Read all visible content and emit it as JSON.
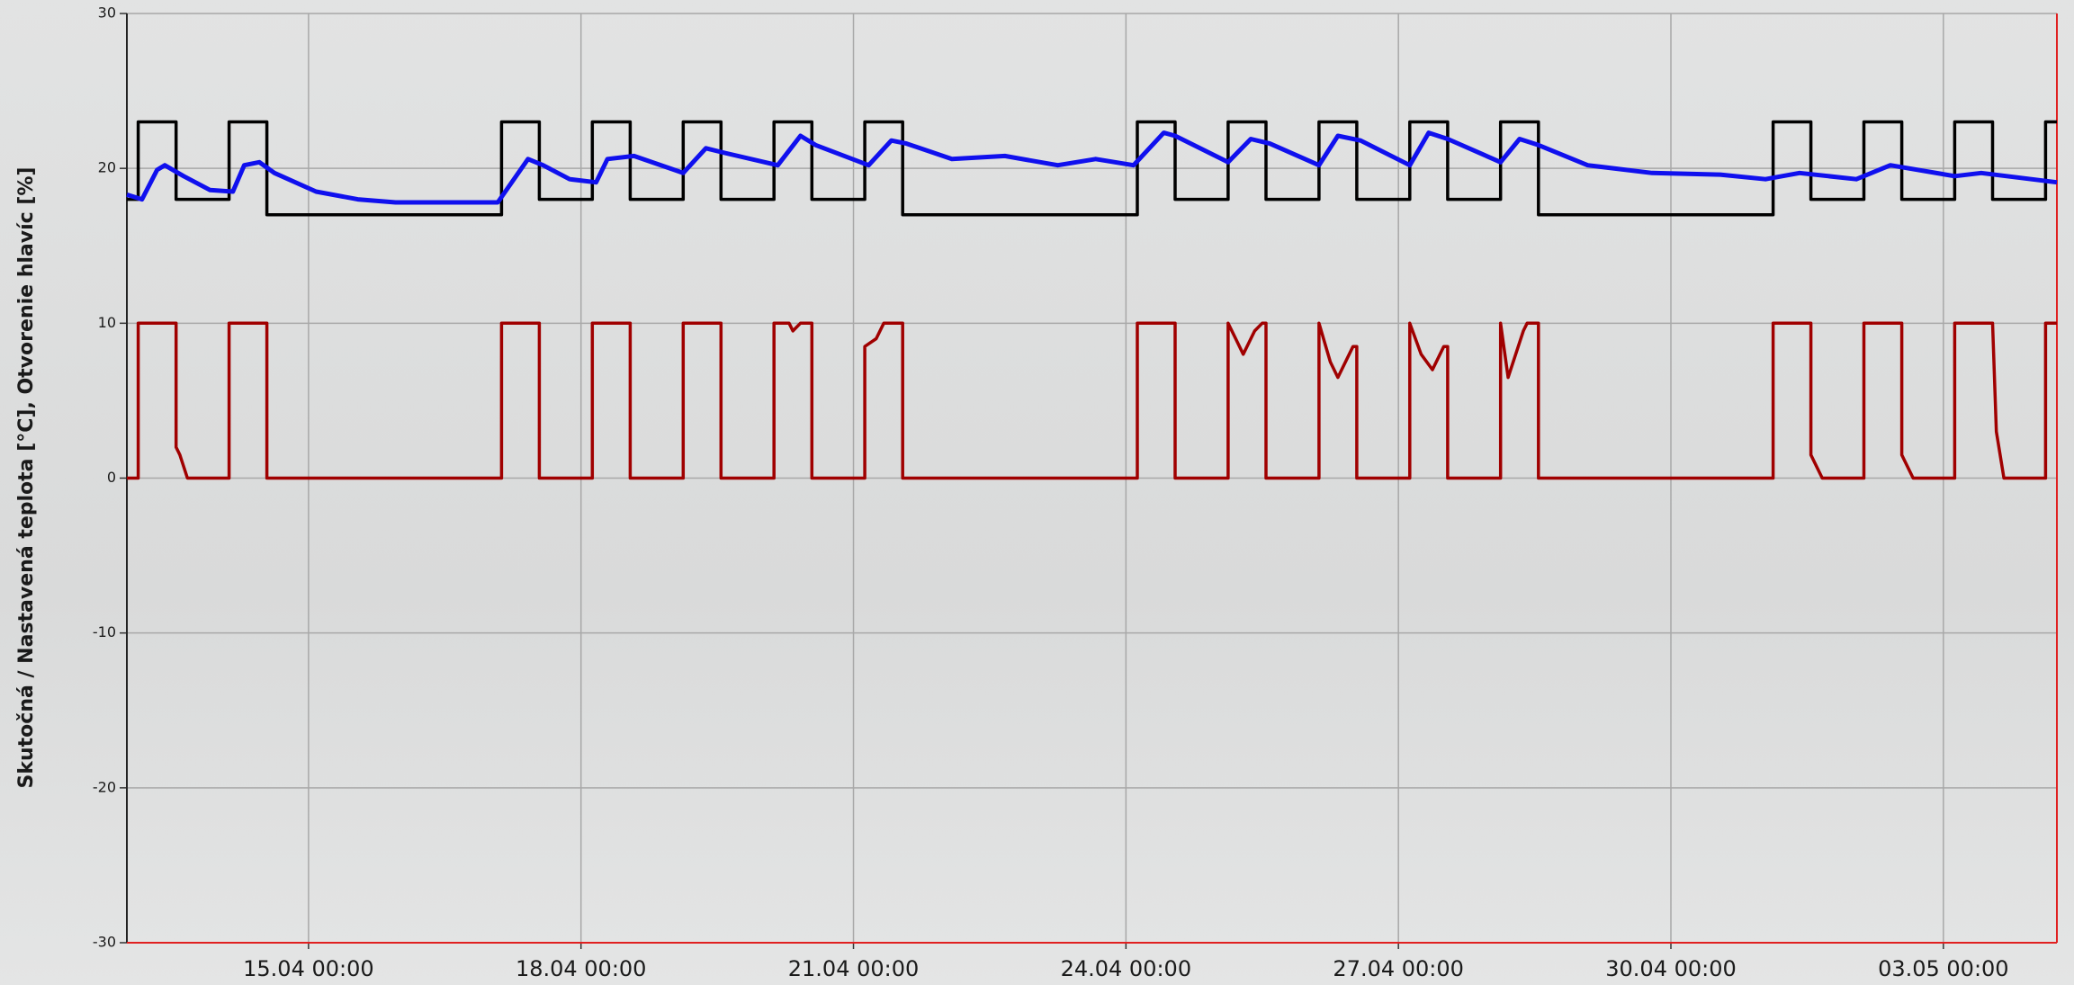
{
  "chart_data": {
    "type": "line",
    "ylabel": "Skutočná / Nastavená teplota [°C], Otvorenie hlavíc [%]",
    "xlim": [
      "13.04 00:00",
      "04.05 06:00"
    ],
    "xticks": [
      "15.04 00:00",
      "18.04 00:00",
      "21.04 00:00",
      "24.04 00:00",
      "27.04 00:00",
      "30.04 00:00",
      "03.05 00:00"
    ],
    "ylim": [
      -30,
      30
    ],
    "yticks": [
      30,
      20,
      10,
      0,
      -10,
      -20,
      -30
    ],
    "grid": true,
    "series": [
      {
        "color": "#000000",
        "x": [
          "13.04 00:00",
          "13.04 03:00",
          "13.04 03:00",
          "13.04 13:00",
          "13.04 13:00",
          "14.04 03:00",
          "14.04 03:00",
          "14.04 13:00",
          "14.04 13:00",
          "17.04 03:00",
          "17.04 03:00",
          "17.04 13:00",
          "17.04 13:00",
          "18.04 03:00",
          "18.04 03:00",
          "18.04 13:00",
          "18.04 13:00",
          "19.04 03:00",
          "19.04 03:00",
          "19.04 13:00",
          "19.04 13:00",
          "20.04 03:00",
          "20.04 03:00",
          "20.04 13:00",
          "20.04 13:00",
          "21.04 03:00",
          "21.04 03:00",
          "21.04 13:00",
          "21.04 13:00",
          "24.04 03:00",
          "24.04 03:00",
          "24.04 13:00",
          "24.04 13:00",
          "25.04 03:00",
          "25.04 03:00",
          "25.04 13:00",
          "25.04 13:00",
          "26.04 03:00",
          "26.04 03:00",
          "26.04 13:00",
          "26.04 13:00",
          "27.04 03:00",
          "27.04 03:00",
          "27.04 13:00",
          "27.04 13:00",
          "28.04 03:00",
          "28.04 03:00",
          "28.04 13:00",
          "28.04 13:00",
          "01.05 03:00",
          "01.05 03:00",
          "01.05 13:00",
          "01.05 13:00",
          "02.05 03:00",
          "02.05 03:00",
          "02.05 13:00",
          "02.05 13:00",
          "03.05 03:00",
          "03.05 03:00",
          "03.05 13:00",
          "03.05 13:00",
          "04.05 03:00",
          "04.05 03:00",
          "04.05 06:00"
        ],
        "values": [
          18,
          18,
          23,
          23,
          18,
          18,
          23,
          23,
          17,
          17,
          23,
          23,
          18,
          18,
          23,
          23,
          18,
          18,
          23,
          23,
          18,
          18,
          23,
          23,
          18,
          18,
          23,
          23,
          17,
          17,
          23,
          23,
          18,
          18,
          23,
          23,
          18,
          18,
          23,
          23,
          18,
          18,
          23,
          23,
          18,
          18,
          23,
          23,
          17,
          17,
          23,
          23,
          18,
          18,
          23,
          23,
          18,
          18,
          23,
          23,
          18,
          18,
          23,
          23
        ]
      },
      {
        "color": "#1010ee",
        "x": [
          "13.04 00:00",
          "13.04 04:00",
          "13.04 08:00",
          "13.04 10:00",
          "13.04 15:00",
          "13.04 22:00",
          "14.04 04:00",
          "14.04 07:00",
          "14.04 11:00",
          "14.04 15:00",
          "15.04 02:00",
          "15.04 13:00",
          "15.04 23:00",
          "16.04 10:00",
          "17.04 02:00",
          "17.04 10:00",
          "17.04 14:00",
          "17.04 21:00",
          "18.04 04:00",
          "18.04 07:00",
          "18.04 14:00",
          "19.04 03:00",
          "19.04 09:00",
          "19.04 14:00",
          "20.04 04:00",
          "20.04 10:00",
          "20.04 14:00",
          "21.04 04:00",
          "21.04 10:00",
          "21.04 14:00",
          "22.04 02:00",
          "22.04 16:00",
          "23.04 06:00",
          "23.04 16:00",
          "24.04 02:00",
          "24.04 10:00",
          "24.04 13:00",
          "25.04 03:00",
          "25.04 09:00",
          "25.04 14:00",
          "26.04 03:00",
          "26.04 08:00",
          "26.04 14:00",
          "27.04 03:00",
          "27.04 08:00",
          "27.04 13:00",
          "28.04 03:00",
          "28.04 08:00",
          "28.04 13:00",
          "29.04 02:00",
          "29.04 19:00",
          "30.04 13:00",
          "01.05 01:00",
          "01.05 10:00",
          "02.05 01:00",
          "02.05 10:00",
          "03.05 03:00",
          "03.05 10:00",
          "04.05 06:00"
        ],
        "values": [
          18.3,
          18.0,
          19.9,
          20.2,
          19.5,
          18.6,
          18.5,
          20.2,
          20.4,
          19.7,
          18.5,
          18.0,
          17.8,
          17.8,
          17.8,
          20.6,
          20.2,
          19.3,
          19.1,
          20.6,
          20.8,
          19.7,
          21.3,
          21.0,
          20.2,
          22.1,
          21.5,
          20.2,
          21.8,
          21.6,
          20.6,
          20.8,
          20.2,
          20.6,
          20.2,
          22.3,
          22.1,
          20.4,
          21.9,
          21.6,
          20.2,
          22.1,
          21.8,
          20.2,
          22.3,
          21.9,
          20.4,
          21.9,
          21.5,
          20.2,
          19.7,
          19.6,
          19.3,
          19.7,
          19.3,
          20.2,
          19.5,
          19.7,
          19.1
        ]
      },
      {
        "color": "#a00000",
        "x": [
          "13.04 00:00",
          "13.04 03:00",
          "13.04 03:00",
          "13.04 13:00",
          "13.04 13:00",
          "13.04 14:00",
          "13.04 16:00",
          "14.04 03:00",
          "14.04 03:00",
          "14.04 13:00",
          "14.04 13:00",
          "17.04 03:00",
          "17.04 03:00",
          "17.04 13:00",
          "17.04 13:00",
          "18.04 03:00",
          "18.04 03:00",
          "18.04 13:00",
          "18.04 13:00",
          "19.04 03:00",
          "19.04 03:00",
          "19.04 13:00",
          "19.04 13:00",
          "20.04 03:00",
          "20.04 03:00",
          "20.04 07:00",
          "20.04 08:00",
          "20.04 10:00",
          "20.04 13:00",
          "20.04 13:00",
          "21.04 03:00",
          "21.04 03:00",
          "21.04 06:00",
          "21.04 08:00",
          "21.04 13:00",
          "21.04 13:00",
          "24.04 03:00",
          "24.04 03:00",
          "24.04 13:00",
          "24.04 13:00",
          "25.04 03:00",
          "25.04 03:00",
          "25.04 05:00",
          "25.04 07:00",
          "25.04 10:00",
          "25.04 12:00",
          "25.04 13:00",
          "25.04 13:00",
          "26.04 03:00",
          "26.04 03:00",
          "26.04 06:00",
          "26.04 08:00",
          "26.04 12:00",
          "26.04 13:00",
          "26.04 13:00",
          "27.04 03:00",
          "27.04 03:00",
          "27.04 06:00",
          "27.04 09:00",
          "27.04 12:00",
          "27.04 13:00",
          "27.04 13:00",
          "28.04 03:00",
          "28.04 03:00",
          "28.04 05:00",
          "28.04 09:00",
          "28.04 10:00",
          "28.04 13:00",
          "28.04 13:00",
          "01.05 03:00",
          "01.05 03:00",
          "01.05 13:00",
          "01.05 13:00",
          "01.05 16:00",
          "02.05 03:00",
          "02.05 03:00",
          "02.05 13:00",
          "02.05 13:00",
          "02.05 16:00",
          "03.05 03:00",
          "03.05 03:00",
          "03.05 13:00",
          "03.05 14:00",
          "03.05 16:00",
          "04.05 03:00",
          "04.05 03:00",
          "04.05 06:00"
        ],
        "values": [
          0,
          0,
          10,
          10,
          2,
          1.5,
          0,
          0,
          10,
          10,
          0,
          0,
          10,
          10,
          0,
          0,
          10,
          10,
          0,
          0,
          10,
          10,
          0,
          0,
          10,
          10,
          9.5,
          10,
          10,
          0,
          0,
          8.5,
          9,
          10,
          10,
          0,
          0,
          10,
          10,
          0,
          0,
          10,
          9,
          8,
          9.5,
          10,
          10,
          0,
          0,
          10,
          7.5,
          6.5,
          8.5,
          8.5,
          0,
          0,
          10,
          8,
          7,
          8.5,
          8.5,
          0,
          0,
          10,
          6.5,
          9.5,
          10,
          10,
          0,
          0,
          10,
          10,
          1.5,
          0,
          0,
          10,
          10,
          1.5,
          0,
          0,
          10,
          10,
          3,
          0,
          0,
          10,
          10
        ]
      }
    ]
  }
}
